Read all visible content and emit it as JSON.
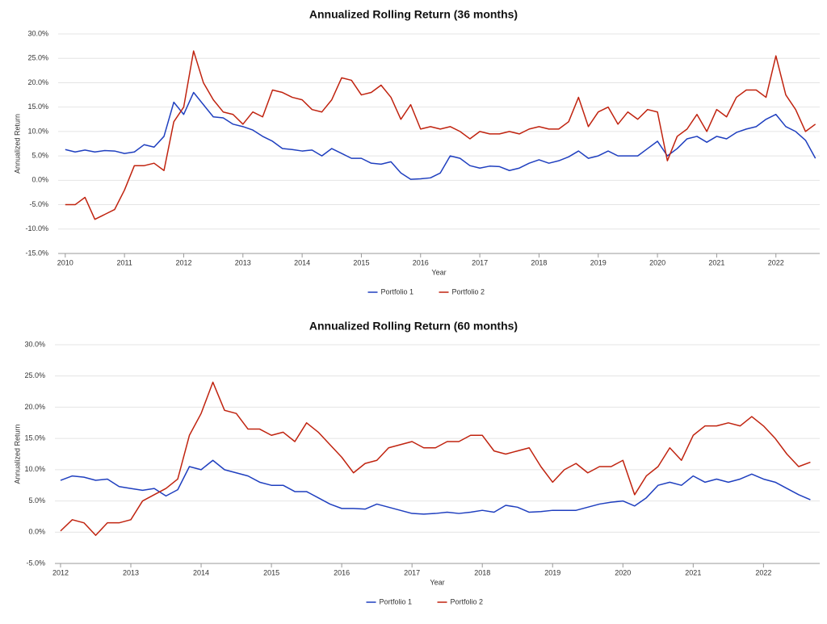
{
  "chart_data": [
    {
      "type": "line",
      "title": "Annualized Rolling Return (36 months)",
      "x_label": "Year",
      "y_label": "Annualized Return",
      "x": [
        2010,
        2010.167,
        2010.333,
        2010.5,
        2010.667,
        2010.833,
        2011,
        2011.167,
        2011.333,
        2011.5,
        2011.667,
        2011.833,
        2012,
        2012.167,
        2012.333,
        2012.5,
        2012.667,
        2012.833,
        2013,
        2013.167,
        2013.333,
        2013.5,
        2013.667,
        2013.833,
        2014,
        2014.167,
        2014.333,
        2014.5,
        2014.667,
        2014.833,
        2015,
        2015.167,
        2015.333,
        2015.5,
        2015.667,
        2015.833,
        2016,
        2016.167,
        2016.333,
        2016.5,
        2016.667,
        2016.833,
        2017,
        2017.167,
        2017.333,
        2017.5,
        2017.667,
        2017.833,
        2018,
        2018.167,
        2018.333,
        2018.5,
        2018.667,
        2018.833,
        2019,
        2019.167,
        2019.333,
        2019.5,
        2019.667,
        2019.833,
        2020,
        2020.167,
        2020.333,
        2020.5,
        2020.667,
        2020.833,
        2021,
        2021.167,
        2021.333,
        2021.5,
        2021.667,
        2021.833,
        2022,
        2022.167,
        2022.333,
        2022.5,
        2022.667
      ],
      "series": [
        {
          "name": "Portfolio 1",
          "color": "#1f3fbf",
          "values": [
            6.3,
            5.8,
            6.2,
            5.8,
            6.1,
            6.0,
            5.5,
            5.8,
            7.3,
            6.8,
            9.0,
            16.0,
            13.5,
            18.0,
            15.5,
            13.0,
            12.8,
            11.5,
            11.0,
            10.3,
            9.0,
            8.0,
            6.5,
            6.3,
            6.0,
            6.2,
            5.0,
            6.5,
            5.5,
            4.5,
            4.5,
            3.5,
            3.3,
            3.8,
            1.5,
            0.2,
            0.3,
            0.5,
            1.5,
            5.0,
            4.5,
            3.0,
            2.5,
            2.9,
            2.8,
            2.0,
            2.5,
            3.5,
            4.2,
            3.5,
            4.0,
            4.8,
            6.0,
            4.5,
            5.0,
            6.0,
            5.0,
            5.0,
            5.0,
            6.5,
            8.0,
            5.0,
            6.5,
            8.5,
            9.0,
            7.8,
            9.0,
            8.5,
            9.8,
            10.5,
            11.0,
            12.5,
            13.5,
            11.0,
            10.0,
            8.2,
            4.5
          ]
        },
        {
          "name": "Portfolio 2",
          "color": "#c0230f",
          "values": [
            -5,
            -5,
            -3.5,
            -8,
            -7,
            -6,
            -2,
            3.0,
            3.0,
            3.5,
            2.0,
            12.0,
            15.0,
            26.5,
            20.0,
            16.5,
            14.0,
            13.5,
            11.5,
            14.0,
            13.0,
            18.5,
            18.0,
            17.0,
            16.5,
            14.5,
            14.0,
            16.5,
            21.0,
            20.5,
            17.5,
            18.0,
            19.5,
            17.0,
            12.5,
            15.5,
            10.5,
            11.0,
            10.5,
            11.0,
            10.0,
            8.5,
            10.0,
            9.5,
            9.5,
            10.0,
            9.5,
            10.5,
            11.0,
            10.5,
            10.5,
            12.0,
            17.0,
            11.0,
            14.0,
            15.0,
            11.5,
            14.0,
            12.5,
            14.5,
            14.0,
            4.0,
            9.0,
            10.5,
            13.5,
            10.0,
            14.5,
            13.0,
            17.0,
            18.5,
            18.5,
            17.0,
            25.5,
            17.5,
            14.5,
            10.0,
            11.5
          ]
        }
      ],
      "xlim": [
        2009.88,
        2022.74
      ],
      "xticks": [
        2010,
        2011,
        2012,
        2013,
        2014,
        2015,
        2016,
        2017,
        2018,
        2019,
        2020,
        2021,
        2022
      ],
      "ylim": [
        -15,
        30
      ],
      "yticks": [
        {
          "value": -15,
          "label": "-15.0%"
        },
        {
          "value": -10,
          "label": "-10.0%"
        },
        {
          "value": -5,
          "label": "-5.0%"
        },
        {
          "value": 0,
          "label": "0.0%"
        },
        {
          "value": 5,
          "label": "5.0%"
        },
        {
          "value": 10,
          "label": "10.0%"
        },
        {
          "value": 15,
          "label": "15.0%"
        },
        {
          "value": 20,
          "label": "20.0%"
        },
        {
          "value": 25,
          "label": "25.0%"
        },
        {
          "value": 30,
          "label": "30.0%"
        }
      ],
      "grid": true,
      "legend": "bottom"
    },
    {
      "type": "line",
      "title": "Annualized Rolling Return (60 months)",
      "x_label": "Year",
      "y_label": "Annualized Return",
      "x": [
        2012,
        2012.167,
        2012.333,
        2012.5,
        2012.667,
        2012.833,
        2013,
        2013.167,
        2013.333,
        2013.5,
        2013.667,
        2013.833,
        2014,
        2014.167,
        2014.333,
        2014.5,
        2014.667,
        2014.833,
        2015,
        2015.167,
        2015.333,
        2015.5,
        2015.667,
        2015.833,
        2016,
        2016.167,
        2016.333,
        2016.5,
        2016.667,
        2016.833,
        2017,
        2017.167,
        2017.333,
        2017.5,
        2017.667,
        2017.833,
        2018,
        2018.167,
        2018.333,
        2018.5,
        2018.667,
        2018.833,
        2019,
        2019.167,
        2019.333,
        2019.5,
        2019.667,
        2019.833,
        2020,
        2020.167,
        2020.333,
        2020.5,
        2020.667,
        2020.833,
        2021,
        2021.167,
        2021.333,
        2021.5,
        2021.667,
        2021.833,
        2022,
        2022.167,
        2022.333,
        2022.5,
        2022.667
      ],
      "series": [
        {
          "name": "Portfolio 1",
          "color": "#1f3fbf",
          "values": [
            8.3,
            9.0,
            8.8,
            8.3,
            8.5,
            7.3,
            7.0,
            6.7,
            7.0,
            5.8,
            6.8,
            10.5,
            10.0,
            11.5,
            10.0,
            9.5,
            9.0,
            8.0,
            7.5,
            7.5,
            6.5,
            6.5,
            5.5,
            4.5,
            3.8,
            3.8,
            3.7,
            4.5,
            4.0,
            3.5,
            3.0,
            2.9,
            3.0,
            3.2,
            3.0,
            3.2,
            3.5,
            3.2,
            4.3,
            4.0,
            3.2,
            3.3,
            3.5,
            3.5,
            3.5,
            4.0,
            4.5,
            4.8,
            5.0,
            4.2,
            5.5,
            7.5,
            8.0,
            7.5,
            9.0,
            8.0,
            8.5,
            8.0,
            8.5,
            9.3,
            8.5,
            8.0,
            7.0,
            6.0,
            5.2
          ]
        },
        {
          "name": "Portfolio 2",
          "color": "#c0230f",
          "values": [
            0.2,
            2.0,
            1.5,
            -0.5,
            1.5,
            1.5,
            2.0,
            5.0,
            6.0,
            7.0,
            8.5,
            15.5,
            19.0,
            24.0,
            19.5,
            19.0,
            16.5,
            16.5,
            15.5,
            16.0,
            14.5,
            17.5,
            16.0,
            14.0,
            12.0,
            9.5,
            11.0,
            11.5,
            13.5,
            14.0,
            14.5,
            13.5,
            13.5,
            14.5,
            14.5,
            15.5,
            15.5,
            13.0,
            12.5,
            13.0,
            13.5,
            10.5,
            8.0,
            10.0,
            11.0,
            9.5,
            10.5,
            10.5,
            11.5,
            6.0,
            9.0,
            10.5,
            13.5,
            11.5,
            15.5,
            17.0,
            17.0,
            17.5,
            17.0,
            18.5,
            17.0,
            15.0,
            12.5,
            10.5,
            11.2
          ]
        }
      ],
      "xlim": [
        2011.92,
        2022.8
      ],
      "xticks": [
        2012,
        2013,
        2014,
        2015,
        2016,
        2017,
        2018,
        2019,
        2020,
        2021,
        2022
      ],
      "ylim": [
        -5,
        30
      ],
      "yticks": [
        {
          "value": -5,
          "label": "-5.0%"
        },
        {
          "value": 0,
          "label": "0.0%"
        },
        {
          "value": 5,
          "label": "5.0%"
        },
        {
          "value": 10,
          "label": "10.0%"
        },
        {
          "value": 15,
          "label": "15.0%"
        },
        {
          "value": 20,
          "label": "20.0%"
        },
        {
          "value": 25,
          "label": "25.0%"
        },
        {
          "value": 30,
          "label": "30.0%"
        }
      ],
      "grid": true,
      "legend": "bottom"
    }
  ]
}
